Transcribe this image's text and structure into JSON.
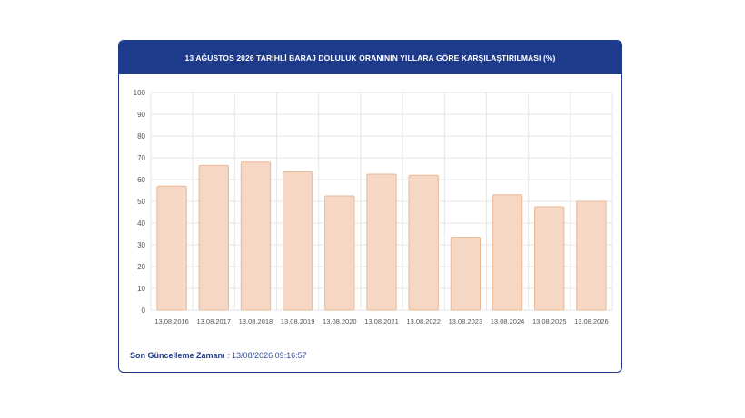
{
  "header": {
    "title": "13 AĞUSTOS 2026 TARİHLİ BARAJ DOLULUK ORANININ YILLARA GÖRE KARŞILAŞTIRILMASI (%)"
  },
  "footer": {
    "label": "Son Güncelleme Zamanı",
    "separator": " : ",
    "value": "13/08/2026 09:16:57"
  },
  "colors": {
    "bar_fill": "#f5d7c4",
    "bar_stroke": "#e8b896",
    "header_bg": "#1e3a8a",
    "grid": "#e6e6e6"
  },
  "chart_data": {
    "type": "bar",
    "title": "13 AĞUSTOS 2026 TARİHLİ BARAJ DOLULUK ORANININ YILLARA GÖRE KARŞILAŞTIRILMASI (%)",
    "categories": [
      "13.08.2016",
      "13.08.2017",
      "13.08.2018",
      "13.08.2019",
      "13.08.2020",
      "13.08.2021",
      "13.08.2022",
      "13.08.2023",
      "13.08.2024",
      "13.08.2025",
      "13.08.2026"
    ],
    "values": [
      57,
      66.5,
      68,
      63.5,
      52.5,
      62.5,
      62,
      33.5,
      53,
      47.5,
      50
    ],
    "ylim": [
      0,
      100
    ],
    "yticks": [
      0,
      10,
      20,
      30,
      40,
      50,
      60,
      70,
      80,
      90,
      100
    ],
    "grid": true,
    "xlabel": "",
    "ylabel": ""
  }
}
